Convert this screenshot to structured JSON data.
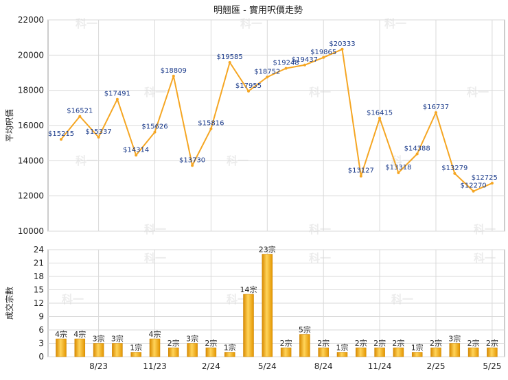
{
  "title": "明翹匯 - 實用呎價走勢",
  "watermark": "科一",
  "chart_data": [
    {
      "type": "line",
      "ylabel": "平均呎價",
      "ylim": [
        10000,
        22000
      ],
      "yticks": [
        10000,
        12000,
        14000,
        16000,
        18000,
        20000,
        22000
      ],
      "line_color": "#f5a623",
      "label_color": "#1a3a8a",
      "points": [
        {
          "label": "$15215",
          "value": 15215
        },
        {
          "label": "$16521",
          "value": 16521
        },
        {
          "label": "$15337",
          "value": 15337
        },
        {
          "label": "$17491",
          "value": 17491
        },
        {
          "label": "$14314",
          "value": 14314
        },
        {
          "label": "$15626",
          "value": 15626
        },
        {
          "label": "$18809",
          "value": 18809
        },
        {
          "label": "$13730",
          "value": 13730
        },
        {
          "label": "$15816",
          "value": 15816
        },
        {
          "label": "$19585",
          "value": 19585
        },
        {
          "label": "$17955",
          "value": 17955
        },
        {
          "label": "$18752",
          "value": 18752
        },
        {
          "label": "$19248",
          "value": 19248
        },
        {
          "label": "$19437",
          "value": 19437
        },
        {
          "label": "$19865",
          "value": 19865
        },
        {
          "label": "$20333",
          "value": 20333
        },
        {
          "label": "$13127",
          "value": 13127
        },
        {
          "label": "$16415",
          "value": 16415
        },
        {
          "label": "$13318",
          "value": 13318
        },
        {
          "label": "$14388",
          "value": 14388
        },
        {
          "label": "$16737",
          "value": 16737
        },
        {
          "label": "$13279",
          "value": 13279
        },
        {
          "label": "$12270",
          "value": 12270
        },
        {
          "label": "$12725",
          "value": 12725
        }
      ]
    },
    {
      "type": "bar",
      "ylabel": "成交宗數",
      "ylim": [
        0,
        24
      ],
      "yticks": [
        0,
        3,
        6,
        9,
        12,
        15,
        18,
        21,
        24
      ],
      "bar_color": "#f5a623",
      "bars": [
        {
          "label": "4宗",
          "value": 4
        },
        {
          "label": "4宗",
          "value": 4
        },
        {
          "label": "3宗",
          "value": 3
        },
        {
          "label": "3宗",
          "value": 3
        },
        {
          "label": "1宗",
          "value": 1
        },
        {
          "label": "4宗",
          "value": 4
        },
        {
          "label": "2宗",
          "value": 2
        },
        {
          "label": "3宗",
          "value": 3
        },
        {
          "label": "2宗",
          "value": 2
        },
        {
          "label": "1宗",
          "value": 1
        },
        {
          "label": "14宗",
          "value": 14
        },
        {
          "label": "23宗",
          "value": 23
        },
        {
          "label": "2宗",
          "value": 2
        },
        {
          "label": "5宗",
          "value": 5
        },
        {
          "label": "2宗",
          "value": 2
        },
        {
          "label": "1宗",
          "value": 1
        },
        {
          "label": "2宗",
          "value": 2
        },
        {
          "label": "2宗",
          "value": 2
        },
        {
          "label": "2宗",
          "value": 2
        },
        {
          "label": "1宗",
          "value": 1
        },
        {
          "label": "2宗",
          "value": 2
        },
        {
          "label": "3宗",
          "value": 3
        },
        {
          "label": "2宗",
          "value": 2
        },
        {
          "label": "2宗",
          "value": 2
        }
      ]
    }
  ],
  "x_ticks": [
    {
      "label": "8/23",
      "index": 2
    },
    {
      "label": "11/23",
      "index": 5
    },
    {
      "label": "2/24",
      "index": 8
    },
    {
      "label": "5/24",
      "index": 11
    },
    {
      "label": "8/24",
      "index": 14
    },
    {
      "label": "11/24",
      "index": 17
    },
    {
      "label": "2/25",
      "index": 20
    },
    {
      "label": "5/25",
      "index": 23
    }
  ]
}
